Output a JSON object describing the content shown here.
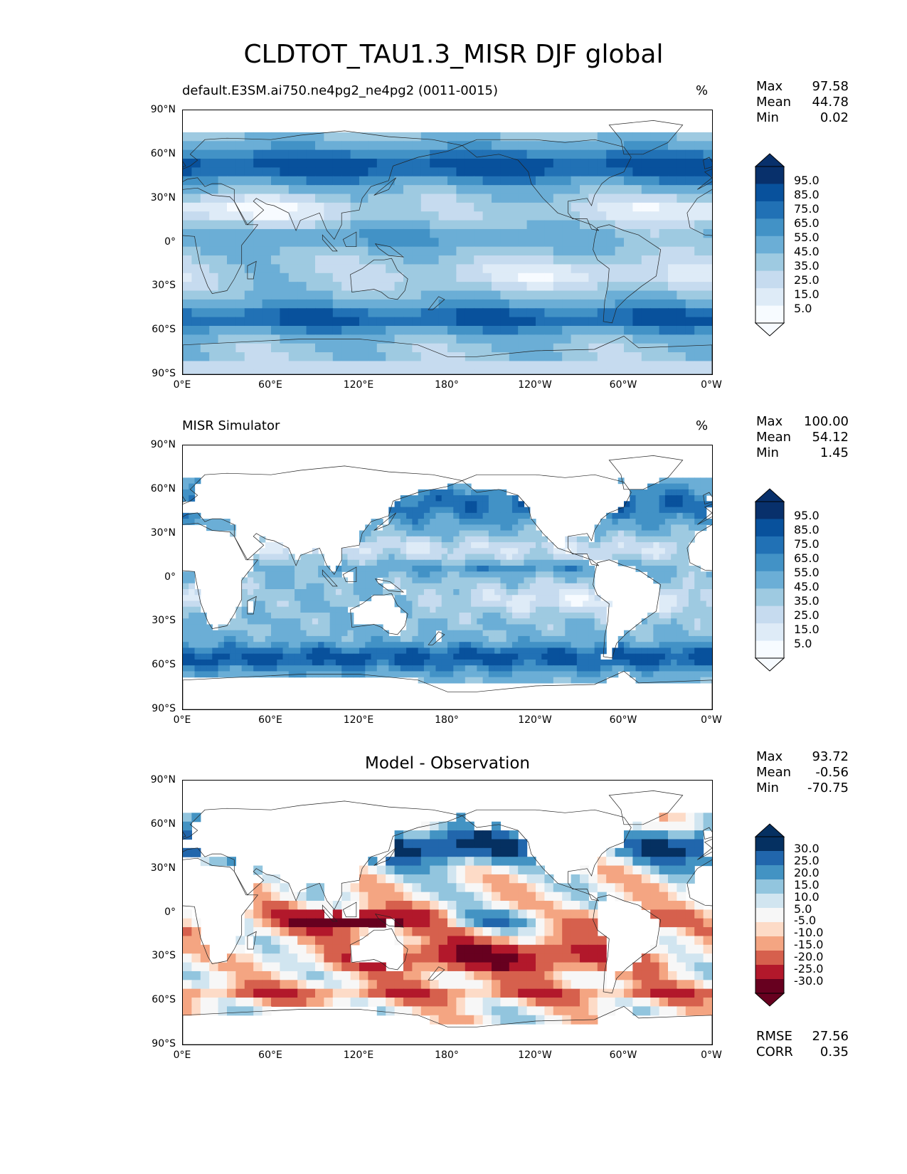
{
  "title": "CLDTOT_TAU1.3_MISR DJF global",
  "colors": {
    "blues": [
      "#f7fbff",
      "#deebf7",
      "#c6dbef",
      "#9ecae1",
      "#6baed6",
      "#4292c6",
      "#2171b5",
      "#08519c",
      "#08306b"
    ],
    "diff": [
      "#67001f",
      "#b2182b",
      "#d6604d",
      "#f4a582",
      "#fddbc7",
      "#f7f7f7",
      "#d1e5f0",
      "#92c5de",
      "#4393c3",
      "#2166ac",
      "#053061"
    ]
  },
  "x_ticks": [
    "0°E",
    "60°E",
    "120°E",
    "180°",
    "120°W",
    "60°W",
    "0°W"
  ],
  "y_ticks": [
    "90°N",
    "60°N",
    "30°N",
    "0°",
    "30°S",
    "60°S",
    "90°S"
  ],
  "panels": [
    {
      "title": "default.E3SM.ai750.ne4pg2_ne4pg2 (0011-0015)",
      "units": "%",
      "stats": [
        {
          "label": "Max",
          "value": "97.58"
        },
        {
          "label": "Mean",
          "value": "44.78"
        },
        {
          "label": "Min",
          "value": "0.02"
        }
      ],
      "colorbar_labels": [
        "95.0",
        "85.0",
        "75.0",
        "65.0",
        "55.0",
        "45.0",
        "35.0",
        "25.0",
        "15.0",
        "5.0"
      ],
      "field_type": "model"
    },
    {
      "title": "MISR Simulator",
      "units": "%",
      "stats": [
        {
          "label": "Max",
          "value": "100.00"
        },
        {
          "label": "Mean",
          "value": "54.12"
        },
        {
          "label": "Min",
          "value": "1.45"
        }
      ],
      "colorbar_labels": [
        "95.0",
        "85.0",
        "75.0",
        "65.0",
        "55.0",
        "45.0",
        "35.0",
        "25.0",
        "15.0",
        "5.0"
      ],
      "field_type": "obs"
    },
    {
      "title": "Model - Observation",
      "units": "",
      "stats": [
        {
          "label": "Max",
          "value": "93.72"
        },
        {
          "label": "Mean",
          "value": "-0.56"
        },
        {
          "label": "Min",
          "value": "-70.75"
        }
      ],
      "colorbar_labels": [
        "30.0",
        "25.0",
        "20.0",
        "15.0",
        "10.0",
        "5.0",
        "-5.0",
        "-10.0",
        "-15.0",
        "-20.0",
        "-25.0",
        "-30.0"
      ],
      "extra_stats": [
        {
          "label": "RMSE",
          "value": "27.56"
        },
        {
          "label": "CORR",
          "value": "0.35"
        }
      ],
      "field_type": "diff"
    }
  ]
}
